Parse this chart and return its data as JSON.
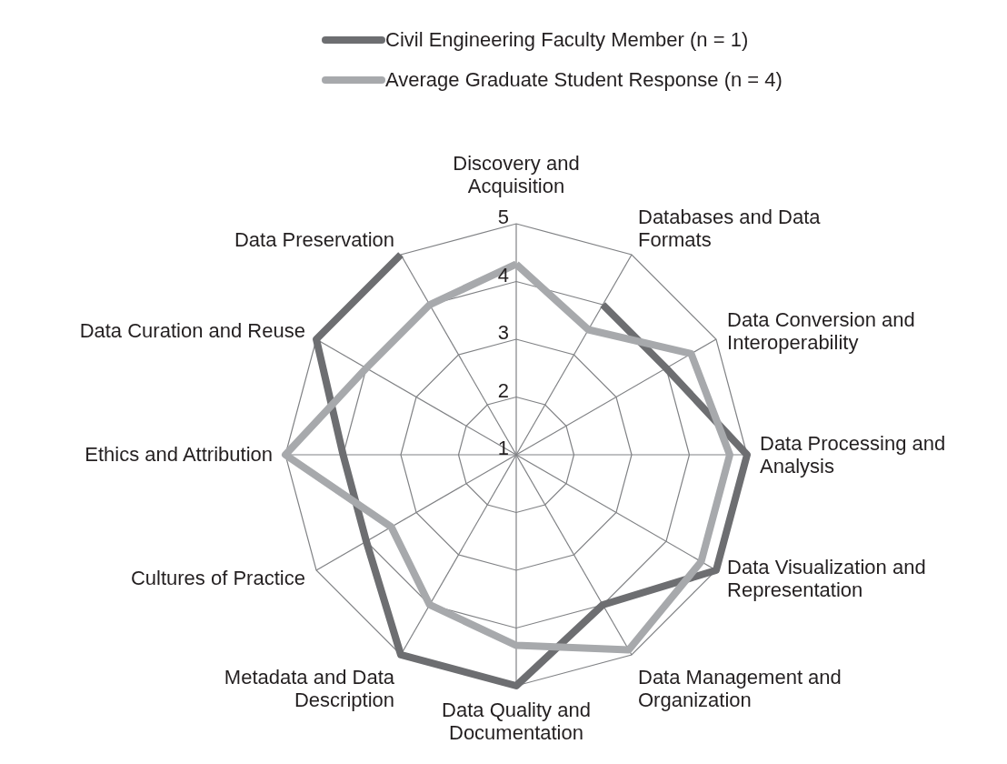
{
  "chart_data": {
    "type": "radar",
    "categories": [
      "Discovery and Acquisition",
      "Databases and Data Formats",
      "Data Conversion and Interoperability",
      "Data Processing and Analysis",
      "Data Visualization and Representation",
      "Data Management and Organization",
      "Data Quality and Documentation",
      "Metadata and Data Description",
      "Cultures of Practice",
      "Ethics and Attribution",
      "Data Curation and Reuse",
      "Data Preservation"
    ],
    "series": [
      {
        "name": "Civil Engineering Faculty Member (n = 1)",
        "color": "#6d6e71",
        "values": [
          null,
          4,
          4,
          5,
          5,
          4,
          5,
          5,
          4,
          4,
          5,
          5
        ]
      },
      {
        "name": "Average Graduate Student Response (n = 4)",
        "color": "#a7a9ac",
        "values": [
          4.3,
          3.5,
          4.5,
          4.7,
          4.7,
          4.9,
          4.3,
          4,
          3.5,
          5,
          4,
          4
        ]
      }
    ],
    "ylim": [
      1,
      5
    ],
    "yticks": [
      1,
      2,
      3,
      4,
      5
    ],
    "grid": true,
    "legend": "top",
    "line_style": "solid",
    "marker": "none"
  }
}
